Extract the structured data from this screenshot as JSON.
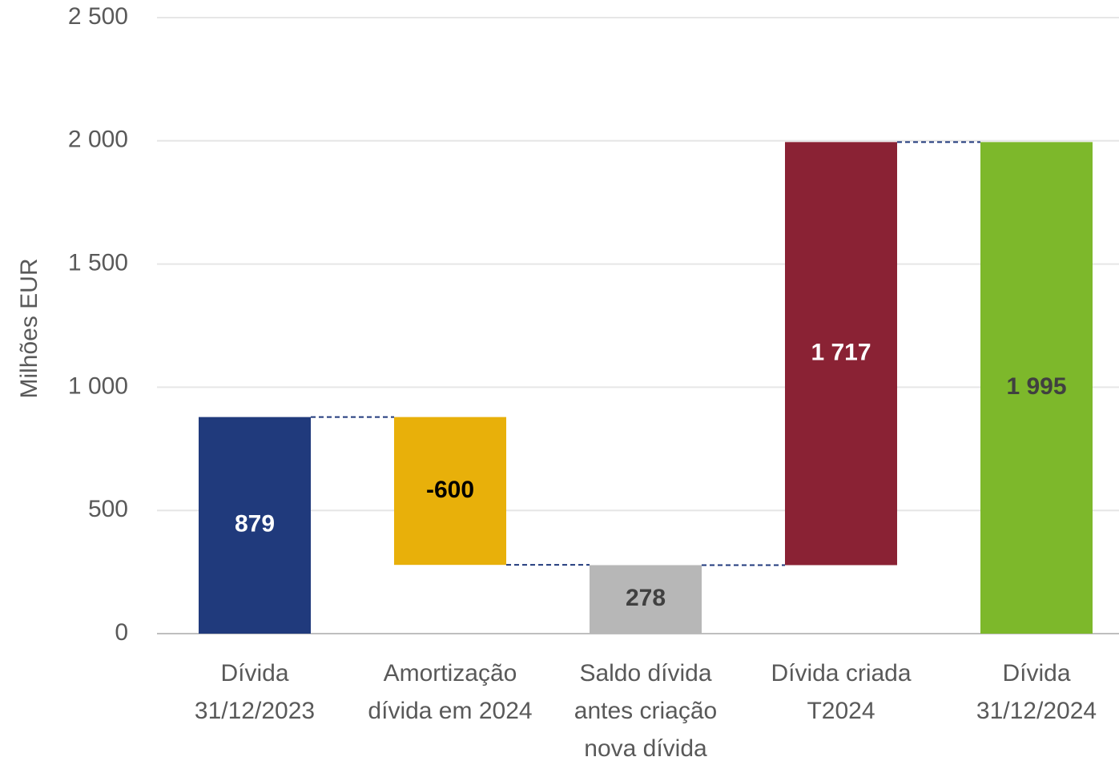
{
  "chart_data": {
    "type": "waterfall",
    "y_axis_label": "Milhões EUR",
    "categories": [
      [
        "Dívida",
        "31/12/2023"
      ],
      [
        "Amortização",
        "dívida em 2024"
      ],
      [
        "Saldo dívida",
        "antes criação",
        "nova dívida"
      ],
      [
        "Dívida criada",
        "T2024"
      ],
      [
        "Dívida",
        "31/12/2024"
      ]
    ],
    "values": [
      879,
      -600,
      278,
      1717,
      1995
    ],
    "value_labels": [
      "879",
      "-600",
      "278",
      "1 717",
      "1 995"
    ],
    "totals": [
      true,
      false,
      true,
      false,
      true
    ],
    "colors": [
      "#203a7c",
      "#e8b00a",
      "#b7b7b7",
      "#8a2234",
      "#7db82b"
    ],
    "label_colors": [
      "#ffffff",
      "#000000",
      "#404040",
      "#ffffff",
      "#404040"
    ],
    "connector_color": "#203a7c",
    "ylim": [
      0,
      2500
    ],
    "yticks": [
      0,
      500,
      {
        "value": 1000,
        "label": "1 000"
      },
      {
        "value": 1500,
        "label": "1 500"
      },
      {
        "value": 2000,
        "label": "2 000"
      },
      {
        "value": 2500,
        "label": "2 500"
      }
    ],
    "grid": true
  }
}
